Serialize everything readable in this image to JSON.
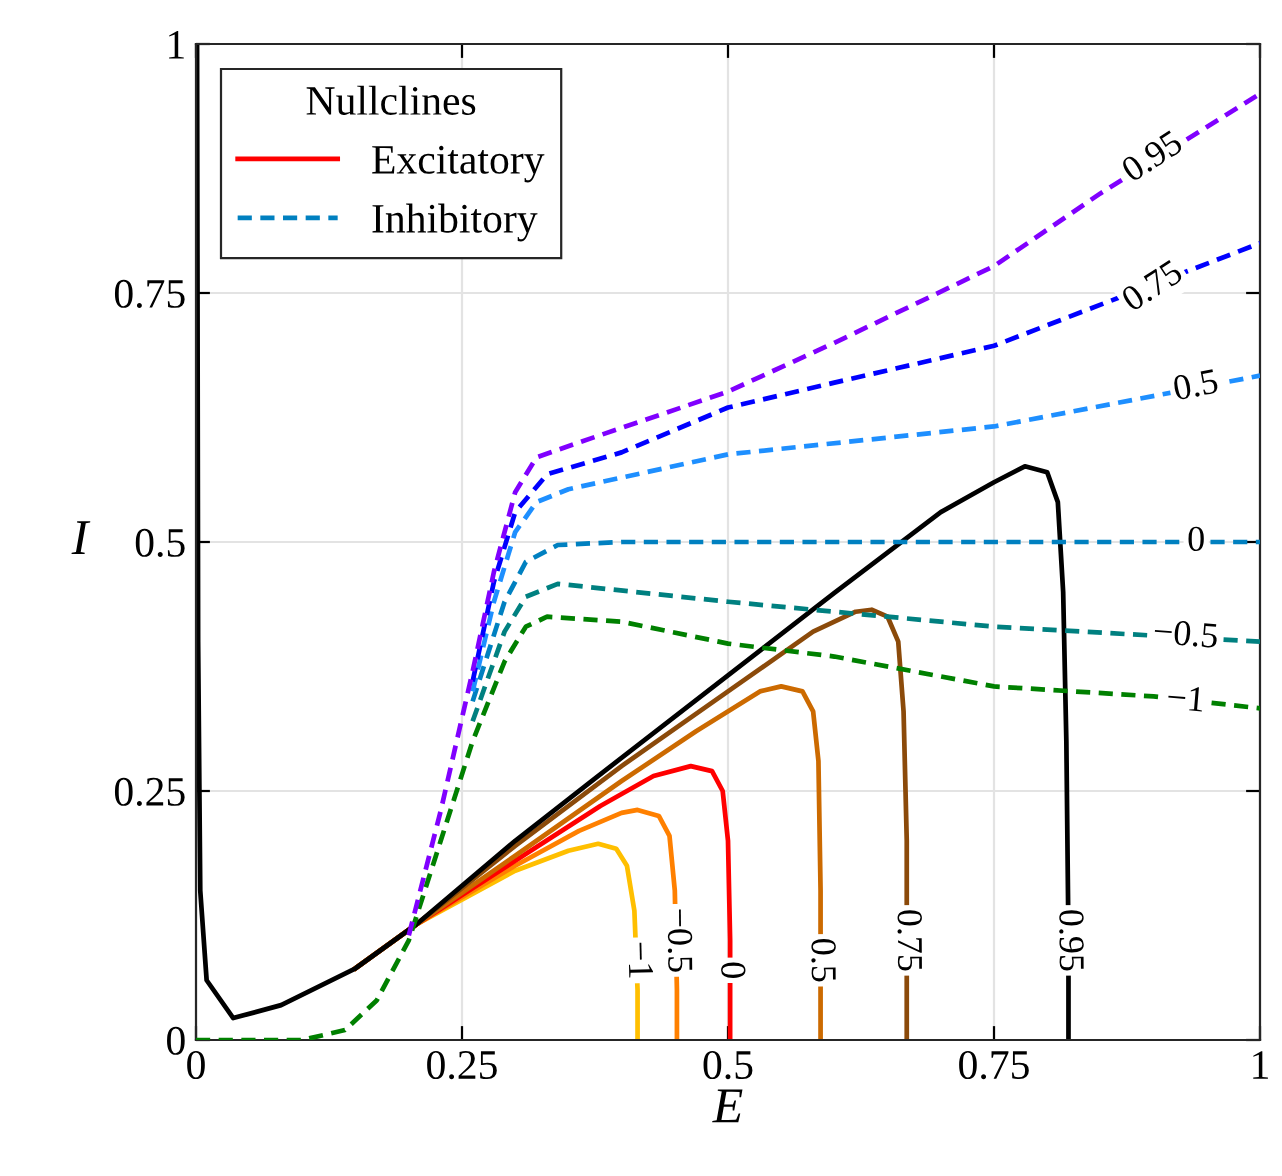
{
  "chart_data": {
    "type": "line",
    "xlabel": "E",
    "ylabel": "I",
    "legend_title": "Nullclines",
    "legend": "top left",
    "grid": true,
    "xlim": [
      0,
      1
    ],
    "ylim": [
      0,
      1
    ],
    "xticks": [
      0,
      0.25,
      0.5,
      0.75,
      1
    ],
    "yticks": [
      0,
      0.25,
      0.5,
      0.75,
      1
    ],
    "series": [
      {
        "color": "#ffbf00",
        "line_style": "solid",
        "x": [
          0.15,
          0.207,
          0.3,
          0.35,
          0.378,
          0.395,
          0.405,
          0.412,
          0.415,
          0.415
        ],
        "values": [
          0.072,
          0.116,
          0.17,
          0.19,
          0.197,
          0.192,
          0.175,
          0.13,
          0.05,
          0
        ]
      },
      {
        "color": "#ff8000",
        "line_style": "solid",
        "x": [
          0.15,
          0.207,
          0.3,
          0.36,
          0.4,
          0.415,
          0.435,
          0.445,
          0.45,
          0.452,
          0.452
        ],
        "values": [
          0.072,
          0.116,
          0.175,
          0.21,
          0.228,
          0.231,
          0.225,
          0.205,
          0.15,
          0.05,
          0
        ]
      },
      {
        "name": "Excitatory",
        "color": "#ff0000",
        "line_style": "solid",
        "x": [
          0.15,
          0.207,
          0.3,
          0.38,
          0.43,
          0.465,
          0.485,
          0.495,
          0.5,
          0.502,
          0.502
        ],
        "values": [
          0.072,
          0.116,
          0.18,
          0.235,
          0.265,
          0.275,
          0.27,
          0.25,
          0.2,
          0.1,
          0
        ]
      },
      {
        "color": "#cc6a00",
        "line_style": "solid",
        "x": [
          0.15,
          0.207,
          0.3,
          0.4,
          0.47,
          0.53,
          0.55,
          0.57,
          0.58,
          0.585,
          0.587,
          0.587
        ],
        "values": [
          0.072,
          0.116,
          0.185,
          0.26,
          0.31,
          0.35,
          0.355,
          0.35,
          0.33,
          0.28,
          0.15,
          0
        ]
      },
      {
        "color": "#8b4a0a",
        "line_style": "solid",
        "x": [
          0.15,
          0.207,
          0.3,
          0.4,
          0.5,
          0.58,
          0.62,
          0.635,
          0.65,
          0.66,
          0.665,
          0.668,
          0.668
        ],
        "values": [
          0.072,
          0.116,
          0.195,
          0.275,
          0.35,
          0.41,
          0.43,
          0.432,
          0.425,
          0.4,
          0.33,
          0.2,
          0
        ]
      },
      {
        "color": "#000000",
        "line_style": "solid",
        "x": [
          0.001,
          0.002,
          0.004,
          0.01,
          0.035,
          0.08,
          0.15,
          0.207,
          0.3,
          0.373,
          0.5,
          0.6,
          0.7,
          0.75,
          0.779,
          0.8,
          0.81,
          0.815,
          0.818,
          0.82,
          0.82
        ],
        "values": [
          1,
          0.4,
          0.15,
          0.06,
          0.022,
          0.035,
          0.072,
          0.116,
          0.2,
          0.261,
          0.366,
          0.449,
          0.53,
          0.56,
          0.576,
          0.57,
          0.54,
          0.45,
          0.3,
          0.1,
          0
        ]
      },
      {
        "color": "#8000ff",
        "line_style": "dashed",
        "x": [
          0.2,
          0.23,
          0.26,
          0.28,
          0.3,
          0.32,
          0.36,
          0.5,
          0.6,
          0.75,
          0.85,
          1
        ],
        "values": [
          0.105,
          0.23,
          0.37,
          0.47,
          0.55,
          0.585,
          0.6,
          0.651,
          0.7,
          0.777,
          0.85,
          0.95
        ]
      },
      {
        "color": "#0000ff",
        "line_style": "dashed",
        "x": [
          0.26,
          0.28,
          0.3,
          0.33,
          0.4,
          0.5,
          0.6,
          0.75,
          1
        ],
        "values": [
          0.36,
          0.46,
          0.53,
          0.568,
          0.59,
          0.635,
          0.66,
          0.697,
          0.8
        ]
      },
      {
        "color": "#1e8fff",
        "line_style": "dashed",
        "x": [
          0.26,
          0.28,
          0.3,
          0.32,
          0.35,
          0.5,
          0.75,
          1
        ],
        "values": [
          0.35,
          0.44,
          0.51,
          0.54,
          0.553,
          0.588,
          0.616,
          0.667
        ]
      },
      {
        "name": "Inhibitory",
        "color": "#0080c0",
        "line_style": "dashed",
        "x": [
          0.26,
          0.29,
          0.31,
          0.34,
          0.4,
          1
        ],
        "values": [
          0.34,
          0.44,
          0.48,
          0.497,
          0.5,
          0.5
        ]
      },
      {
        "color": "#008080",
        "line_style": "dashed",
        "x": [
          0.26,
          0.29,
          0.31,
          0.34,
          0.5,
          0.75,
          1
        ],
        "values": [
          0.32,
          0.41,
          0.445,
          0.458,
          0.44,
          0.415,
          0.4
        ]
      },
      {
        "color": "#008000",
        "line_style": "dashed",
        "x": [
          0,
          0.1,
          0.14,
          0.17,
          0.2,
          0.23,
          0.26,
          0.29,
          0.31,
          0.33,
          0.4,
          0.5,
          0.6,
          0.75,
          0.9,
          1
        ],
        "values": [
          0,
          0,
          0.01,
          0.04,
          0.1,
          0.2,
          0.3,
          0.38,
          0.415,
          0.425,
          0.42,
          0.398,
          0.385,
          0.355,
          0.345,
          0.333
        ]
      }
    ],
    "annotations": [
      {
        "text": "−1",
        "x": 0.415,
        "y": 0.08
      },
      {
        "text": "−0.5",
        "x": 0.452,
        "y": 0.1
      },
      {
        "text": "0",
        "x": 0.502,
        "y": 0.07
      },
      {
        "text": "0.5",
        "x": 0.587,
        "y": 0.08
      },
      {
        "text": "0.75",
        "x": 0.668,
        "y": 0.1
      },
      {
        "text": "0.95",
        "x": 0.82,
        "y": 0.1
      },
      {
        "text": "0.95",
        "x": 0.9,
        "y": 0.885
      },
      {
        "text": "0.75",
        "x": 0.9,
        "y": 0.755
      },
      {
        "text": "0.5",
        "x": 0.94,
        "y": 0.655
      },
      {
        "text": "0",
        "x": 0.94,
        "y": 0.5
      },
      {
        "text": "−0.5",
        "x": 0.93,
        "y": 0.405
      },
      {
        "text": "−1",
        "x": 0.93,
        "y": 0.34
      }
    ]
  }
}
